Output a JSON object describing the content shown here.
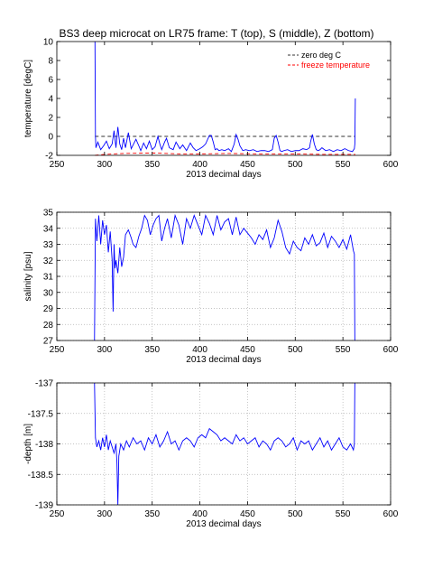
{
  "title": "BS3 deep microcat on LR75 frame: T (top), S (middle), Z (bottom)",
  "chart_data": [
    {
      "type": "line",
      "xlabel": "2013 decimal days",
      "ylabel": "temperature [degC]",
      "xlim": [
        250,
        600
      ],
      "ylim": [
        -2,
        10
      ],
      "xticks": [
        "250",
        "300",
        "350",
        "400",
        "450",
        "500",
        "550",
        "600"
      ],
      "yticks": [
        "-2",
        "0",
        "2",
        "4",
        "6",
        "8",
        "10"
      ],
      "grid": false,
      "legend_position": "top-right",
      "series": [
        {
          "name": "zero deg C",
          "color": "#333333",
          "style": "dashed",
          "x": [
            290,
            563
          ],
          "y": [
            0,
            0
          ]
        },
        {
          "name": "freeze temperature",
          "color": "#ff0000",
          "style": "dashed",
          "x": [
            290,
            300,
            320,
            350,
            380,
            400,
            430,
            460,
            500,
            530,
            563
          ],
          "y": [
            -2.0,
            -1.9,
            -1.8,
            -1.75,
            -1.85,
            -1.85,
            -1.8,
            -1.85,
            -1.85,
            -1.9,
            -1.9
          ]
        },
        {
          "name": "",
          "color": "#0000ff",
          "style": "solid",
          "x": [
            290,
            290.5,
            291,
            293,
            296,
            299,
            302,
            305,
            308,
            310,
            312,
            314,
            316,
            318,
            320,
            322,
            325,
            328,
            330,
            333,
            336,
            338,
            341,
            344,
            347,
            350,
            353,
            356,
            358,
            360,
            363,
            365,
            368,
            372,
            375,
            379,
            382,
            386,
            390,
            393,
            396,
            400,
            403,
            406,
            410,
            412,
            414,
            416,
            418,
            420,
            423,
            426,
            430,
            433,
            436,
            438,
            440,
            442,
            445,
            448,
            452,
            456,
            460,
            464,
            468,
            472,
            476,
            478,
            480,
            482,
            484,
            486,
            488,
            492,
            496,
            500,
            504,
            508,
            512,
            515,
            516,
            518,
            520,
            522,
            524,
            526,
            528,
            532,
            536,
            540,
            544,
            548,
            552,
            556,
            560,
            562,
            562.5,
            563
          ],
          "y": [
            10,
            0,
            -1.2,
            -0.6,
            -1.4,
            -1.0,
            -0.5,
            -1.3,
            -0.8,
            0.6,
            -1.2,
            1.0,
            -0.8,
            -1.4,
            -0.2,
            -1.2,
            0.4,
            -1.3,
            -0.9,
            -0.3,
            -1.0,
            -1.5,
            -0.7,
            -1.3,
            -0.5,
            -1.4,
            -1.1,
            0.0,
            -0.8,
            -1.4,
            -0.6,
            -0.2,
            -1.2,
            -1.4,
            -0.6,
            -1.3,
            -0.9,
            -1.5,
            -0.7,
            -1.2,
            -1.5,
            -1.3,
            -1.1,
            -0.8,
            0.1,
            0.1,
            -0.6,
            -1.4,
            -1.3,
            -1.5,
            -1.4,
            -1.5,
            -1.3,
            -1.6,
            -0.8,
            0.2,
            -0.3,
            -1.0,
            -1.5,
            -1.4,
            -1.5,
            -1.4,
            -1.6,
            -1.5,
            -1.5,
            -1.6,
            -1.4,
            -0.2,
            0.1,
            -0.6,
            -1.5,
            -1.6,
            -1.5,
            -1.4,
            -1.6,
            -1.5,
            -1.5,
            -1.3,
            -1.4,
            -1.2,
            -0.6,
            0.2,
            -0.8,
            -1.4,
            -1.5,
            -1.4,
            -1.2,
            -1.5,
            -1.4,
            -1.6,
            -1.4,
            -1.5,
            -1.3,
            -1.5,
            -1.6,
            -1.3,
            -0.8,
            4.0
          ]
        }
      ],
      "legend": [
        "zero deg C",
        "freeze temperature"
      ]
    },
    {
      "type": "line",
      "xlabel": "2013 decimal days",
      "ylabel": "salinity [psu]",
      "xlim": [
        250,
        600
      ],
      "ylim": [
        27,
        35
      ],
      "xticks": [
        "250",
        "300",
        "350",
        "400",
        "450",
        "500",
        "550",
        "600"
      ],
      "yticks": [
        "27",
        "28",
        "29",
        "30",
        "31",
        "32",
        "33",
        "34",
        "35"
      ],
      "grid": true,
      "series": [
        {
          "name": "",
          "color": "#0000ff",
          "style": "solid",
          "x": [
            289.5,
            290.5,
            292,
            294,
            296,
            298,
            300,
            302,
            304,
            306,
            308,
            309,
            310,
            311,
            312,
            314,
            316,
            318,
            320,
            322,
            325,
            328,
            330,
            333,
            336,
            339,
            342,
            345,
            348,
            351,
            354,
            357,
            360,
            363,
            366,
            370,
            374,
            378,
            382,
            386,
            390,
            394,
            398,
            402,
            406,
            410,
            414,
            418,
            422,
            426,
            430,
            434,
            438,
            442,
            446,
            450,
            454,
            458,
            462,
            466,
            470,
            474,
            478,
            482,
            486,
            490,
            494,
            498,
            502,
            506,
            510,
            514,
            518,
            522,
            526,
            530,
            534,
            538,
            542,
            546,
            550,
            554,
            558,
            561,
            562,
            562.5
          ],
          "y": [
            27,
            34.6,
            33.2,
            34.8,
            33.0,
            34.5,
            33.6,
            34.2,
            32.5,
            33.8,
            32.0,
            28.8,
            33.0,
            31.5,
            32.0,
            31.2,
            32.8,
            31.6,
            32.2,
            33.6,
            33.9,
            33.4,
            33.0,
            32.8,
            33.5,
            34.0,
            34.8,
            34.5,
            33.6,
            34.2,
            34.6,
            34.8,
            33.2,
            34.0,
            34.6,
            33.4,
            34.8,
            34.2,
            33.0,
            34.6,
            34.0,
            34.8,
            34.2,
            33.6,
            34.8,
            34.3,
            33.6,
            34.8,
            33.9,
            34.4,
            34.6,
            33.6,
            34.7,
            33.6,
            34.0,
            33.7,
            33.4,
            33.0,
            33.6,
            33.3,
            33.9,
            32.8,
            33.4,
            34.5,
            33.8,
            32.8,
            32.4,
            33.2,
            32.8,
            32.6,
            33.4,
            33.0,
            33.6,
            32.9,
            33.1,
            33.7,
            32.8,
            33.5,
            33.2,
            32.8,
            33.3,
            32.7,
            33.6,
            32.6,
            32.4,
            27
          ]
        }
      ]
    },
    {
      "type": "line",
      "xlabel": "2013 decimal days",
      "ylabel": "-depth [m]",
      "xlim": [
        250,
        600
      ],
      "ylim": [
        -139,
        -137
      ],
      "xticks": [
        "250",
        "300",
        "350",
        "400",
        "450",
        "500",
        "550",
        "600"
      ],
      "yticks": [
        "-139",
        "-138.5",
        "-138",
        "-137.5",
        "-137"
      ],
      "grid": true,
      "series": [
        {
          "name": "",
          "color": "#0000ff",
          "style": "solid",
          "x": [
            289.5,
            290.5,
            292,
            294,
            296,
            298,
            300,
            302,
            304,
            306,
            308,
            310,
            312,
            313,
            314,
            315,
            317,
            320,
            323,
            326,
            330,
            334,
            338,
            342,
            346,
            350,
            354,
            358,
            362,
            366,
            370,
            374,
            378,
            382,
            386,
            390,
            394,
            398,
            402,
            406,
            410,
            414,
            418,
            422,
            426,
            430,
            434,
            438,
            442,
            446,
            450,
            454,
            458,
            462,
            466,
            470,
            474,
            478,
            482,
            486,
            490,
            494,
            498,
            502,
            506,
            510,
            514,
            518,
            522,
            526,
            530,
            534,
            538,
            542,
            546,
            550,
            554,
            558,
            561,
            562,
            562.5
          ],
          "y": [
            -137,
            -137.9,
            -138.05,
            -137.95,
            -138.1,
            -137.9,
            -138.05,
            -137.85,
            -138.1,
            -137.95,
            -138.05,
            -138.15,
            -138.0,
            -138.3,
            -139,
            -138.2,
            -138.0,
            -138.1,
            -137.95,
            -138.05,
            -137.9,
            -138.0,
            -137.95,
            -138.1,
            -137.9,
            -138.0,
            -137.85,
            -138.05,
            -137.95,
            -137.8,
            -138.0,
            -137.95,
            -138.1,
            -137.95,
            -137.9,
            -137.95,
            -138.05,
            -137.9,
            -137.85,
            -137.9,
            -137.75,
            -137.8,
            -137.85,
            -137.95,
            -137.9,
            -137.95,
            -138.0,
            -137.85,
            -137.95,
            -137.9,
            -138.0,
            -137.95,
            -137.9,
            -138.05,
            -137.95,
            -138.0,
            -138.1,
            -137.95,
            -137.9,
            -137.95,
            -138.05,
            -138.0,
            -137.9,
            -138.1,
            -137.95,
            -138.0,
            -137.95,
            -138.1,
            -138.0,
            -137.9,
            -138.05,
            -137.95,
            -138.1,
            -138.0,
            -137.9,
            -138.05,
            -138.1,
            -138.0,
            -138.1,
            -138.0,
            -137
          ]
        }
      ]
    }
  ]
}
